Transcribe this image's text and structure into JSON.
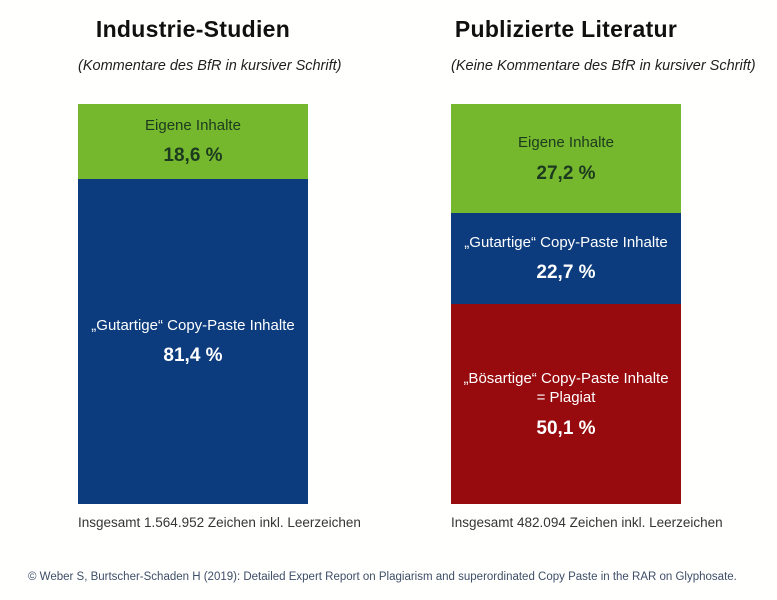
{
  "chart_data": [
    {
      "type": "bar",
      "stacked": true,
      "orientation": "vertical",
      "title": "Industrie-Studien",
      "subtitle": "(Kommentare des BfR in kursiver Schrift)",
      "caption": "Insgesamt 1.564.952 Zeichen inkl. Leerzeichen",
      "unit": "%",
      "ylim": [
        0,
        100
      ],
      "grid": false,
      "legend": false,
      "segments": [
        {
          "label": "Eigene Inhalte",
          "value": 18.6,
          "value_label": "18,6 %",
          "color": "#76b82d",
          "text_color": "#1c3a1f"
        },
        {
          "label": "„Gutartige“ Copy-Paste Inhalte",
          "value": 81.4,
          "value_label": "81,4 %",
          "color": "#0c3c7e",
          "text_color": "#ffffff"
        }
      ]
    },
    {
      "type": "bar",
      "stacked": true,
      "orientation": "vertical",
      "title": "Publizierte Literatur",
      "subtitle": "(Keine Kommentare des BfR in kursiver Schrift)",
      "caption": "Insgesamt 482.094 Zeichen inkl. Leerzeichen",
      "unit": "%",
      "ylim": [
        0,
        100
      ],
      "grid": false,
      "legend": false,
      "segments": [
        {
          "label": "Eigene Inhalte",
          "value": 27.2,
          "value_label": "27,2 %",
          "color": "#76b82d",
          "text_color": "#1c3a1f"
        },
        {
          "label": "„Gutartige“ Copy-Paste Inhalte",
          "value": 22.7,
          "value_label": "22,7 %",
          "color": "#0c3c7e",
          "text_color": "#ffffff"
        },
        {
          "label": "„Bösartige“ Copy-Paste Inhalte = Plagiat",
          "value": 50.1,
          "value_label": "50,1 %",
          "color": "#970a0d",
          "text_color": "#ffffff"
        }
      ]
    }
  ],
  "footer": {
    "text": "© Weber S, Burtscher-Schaden H (2019): Detailed Expert Report on Plagiarism and superordinated Copy Paste in the RAR on Glyphosate."
  },
  "colors": {
    "own_content_green": "#76b82d",
    "benign_copy_paste_blue": "#0c3c7e",
    "malicious_copy_paste_red": "#970a0d",
    "footer_blue": "#3e4e68",
    "background": "#fffffe"
  }
}
